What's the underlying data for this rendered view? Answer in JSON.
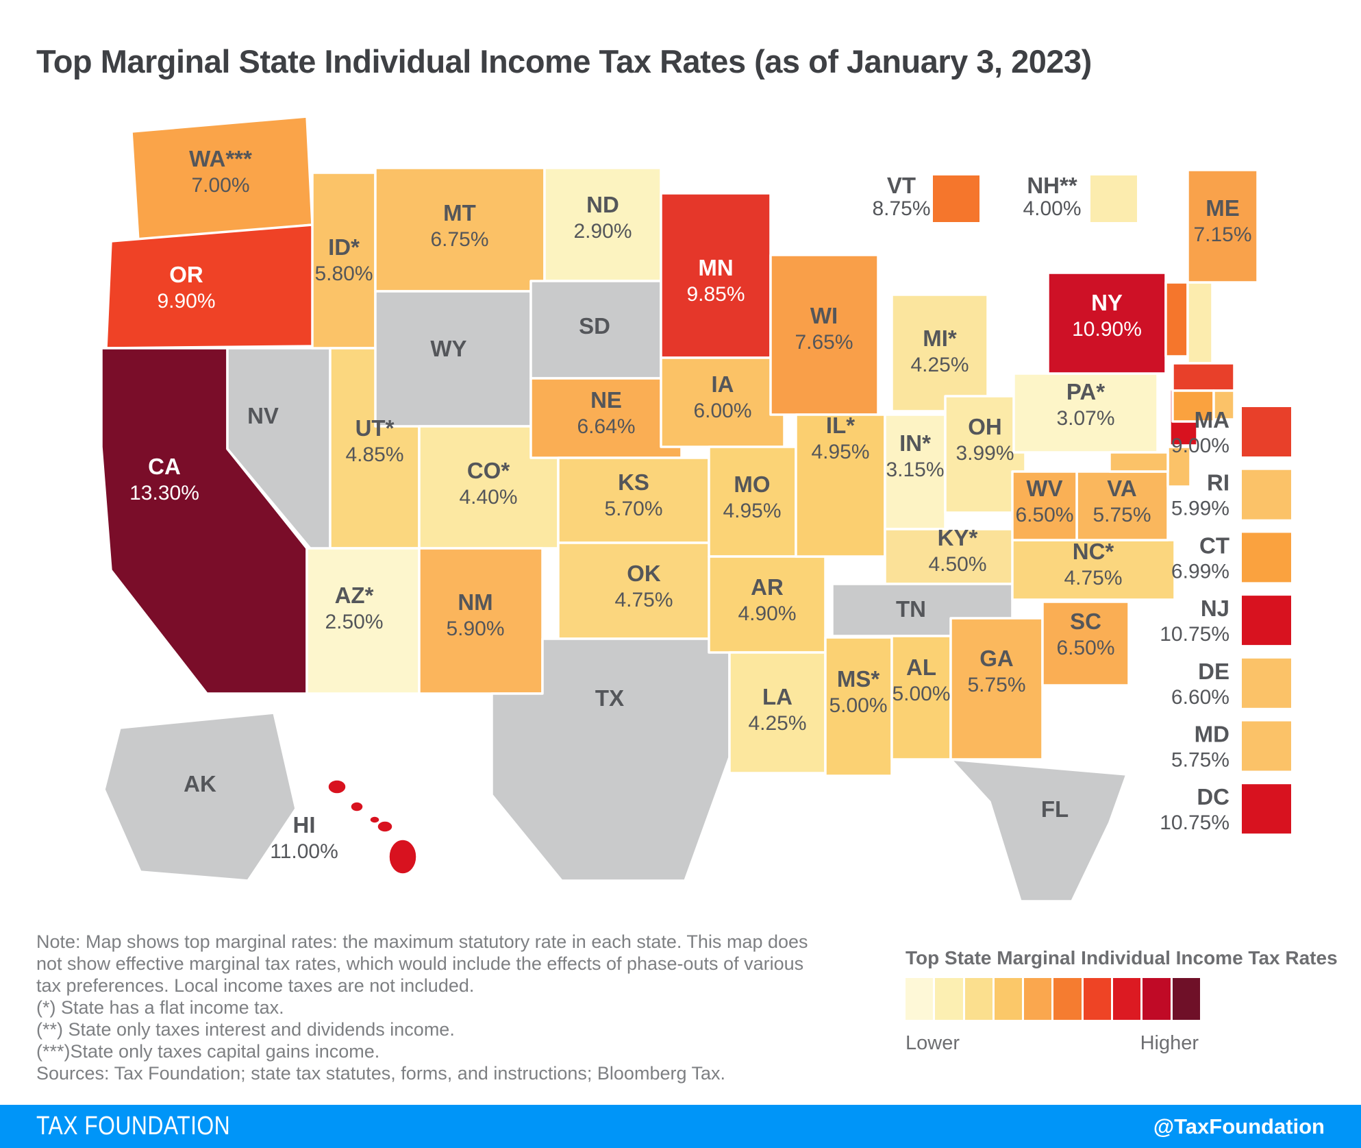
{
  "title": "Top Marginal State Individual Income Tax Rates (as of January 3, 2023)",
  "map": {
    "states": [
      {
        "abbr": "WA",
        "label": "WA***",
        "rate": "7.00%",
        "color": "#FAA449"
      },
      {
        "abbr": "OR",
        "label": "OR",
        "rate": "9.90%",
        "color": "#EF4226",
        "text": "white"
      },
      {
        "abbr": "CA",
        "label": "CA",
        "rate": "13.30%",
        "color": "#7A0D29",
        "text": "white"
      },
      {
        "abbr": "NV",
        "label": "NV",
        "color": "#C9CACB"
      },
      {
        "abbr": "ID",
        "label": "ID*",
        "rate": "5.80%",
        "color": "#FBC368"
      },
      {
        "abbr": "UT",
        "label": "UT*",
        "rate": "4.85%",
        "color": "#FBD77F"
      },
      {
        "abbr": "AZ",
        "label": "AZ*",
        "rate": "2.50%",
        "color": "#FDF6CD"
      },
      {
        "abbr": "MT",
        "label": "MT",
        "rate": "6.75%",
        "color": "#FBC166"
      },
      {
        "abbr": "WY",
        "label": "WY",
        "color": "#C9CACB"
      },
      {
        "abbr": "CO",
        "label": "CO*",
        "rate": "4.40%",
        "color": "#FCE8A2"
      },
      {
        "abbr": "NM",
        "label": "NM",
        "rate": "5.90%",
        "color": "#FBB55C"
      },
      {
        "abbr": "ND",
        "label": "ND",
        "rate": "2.90%",
        "color": "#FCF3C0"
      },
      {
        "abbr": "SD",
        "label": "SD",
        "color": "#C9CACB"
      },
      {
        "abbr": "NE",
        "label": "NE",
        "rate": "6.64%",
        "color": "#FAAE54"
      },
      {
        "abbr": "KS",
        "label": "KS",
        "rate": "5.70%",
        "color": "#FBD47A"
      },
      {
        "abbr": "OK",
        "label": "OK",
        "rate": "4.75%",
        "color": "#FBD67E"
      },
      {
        "abbr": "TX",
        "label": "TX",
        "color": "#C9CACB"
      },
      {
        "abbr": "MN",
        "label": "MN",
        "rate": "9.85%",
        "color": "#E5372A",
        "text": "white"
      },
      {
        "abbr": "IA",
        "label": "IA",
        "rate": "6.00%",
        "color": "#FBC266"
      },
      {
        "abbr": "MO",
        "label": "MO",
        "rate": "4.95%",
        "color": "#FBD376"
      },
      {
        "abbr": "AR",
        "label": "AR",
        "rate": "4.90%",
        "color": "#FBD376"
      },
      {
        "abbr": "LA",
        "label": "LA",
        "rate": "4.25%",
        "color": "#FCE79E"
      },
      {
        "abbr": "WI",
        "label": "WI",
        "rate": "7.65%",
        "color": "#F99F49"
      },
      {
        "abbr": "IL",
        "label": "IL*",
        "rate": "4.95%",
        "color": "#FBCF70"
      },
      {
        "abbr": "MS",
        "label": "MS*",
        "rate": "5.00%",
        "color": "#FBD173"
      },
      {
        "abbr": "MI",
        "label": "MI*",
        "rate": "4.25%",
        "color": "#FBE59E"
      },
      {
        "abbr": "IN",
        "label": "IN*",
        "rate": "3.15%",
        "color": "#FDF3C4"
      },
      {
        "abbr": "OH",
        "label": "OH",
        "rate": "3.99%",
        "color": "#FCEAA8"
      },
      {
        "abbr": "KY",
        "label": "KY*",
        "rate": "4.50%",
        "color": "#FBE198"
      },
      {
        "abbr": "TN",
        "label": "TN",
        "color": "#C9CACB"
      },
      {
        "abbr": "AL",
        "label": "AL",
        "rate": "5.00%",
        "color": "#FBD173"
      },
      {
        "abbr": "GA",
        "label": "GA",
        "rate": "5.75%",
        "color": "#FBB85D"
      },
      {
        "abbr": "SC",
        "label": "SC",
        "rate": "6.50%",
        "color": "#FAAE54"
      },
      {
        "abbr": "NC",
        "label": "NC*",
        "rate": "4.75%",
        "color": "#FBD67E"
      },
      {
        "abbr": "VA",
        "label": "VA",
        "rate": "5.75%",
        "color": "#FAB75D"
      },
      {
        "abbr": "WV",
        "label": "WV",
        "rate": "6.50%",
        "color": "#FAB055"
      },
      {
        "abbr": "PA",
        "label": "PA*",
        "rate": "3.07%",
        "color": "#FDF5C8"
      },
      {
        "abbr": "NJ",
        "color": "#D8121F"
      },
      {
        "abbr": "DE",
        "color": "#FBC268"
      },
      {
        "abbr": "MD",
        "color": "#FBC268"
      },
      {
        "abbr": "NY",
        "label": "NY",
        "rate": "10.90%",
        "color": "#CE1126",
        "text": "white"
      },
      {
        "abbr": "VT",
        "color": "#F5762C"
      },
      {
        "abbr": "NH",
        "color": "#FCECAE"
      },
      {
        "abbr": "MA",
        "color": "#E8402A"
      },
      {
        "abbr": "CT",
        "color": "#FAA23F"
      },
      {
        "abbr": "RI",
        "color": "#FBC268"
      },
      {
        "abbr": "ME",
        "label": "ME",
        "rate": "7.15%",
        "color": "#F9A24B"
      },
      {
        "abbr": "FL",
        "label": "FL",
        "color": "#C9CACB"
      },
      {
        "abbr": "AK",
        "label": "AK",
        "color": "#C9CACB"
      },
      {
        "abbr": "HI",
        "label": "HI",
        "rate": "11.00%",
        "color": "#D8121F",
        "text": "dark-outside"
      }
    ]
  },
  "top_legend": [
    {
      "abbr": "VT",
      "rate": "8.75%",
      "color": "#F5762C"
    },
    {
      "abbr": "NH**",
      "rate": "4.00%",
      "color": "#FCECAE"
    }
  ],
  "side_legend": [
    {
      "abbr": "MA",
      "rate": "9.00%",
      "color": "#E8402A"
    },
    {
      "abbr": "RI",
      "rate": "5.99%",
      "color": "#FBC268"
    },
    {
      "abbr": "CT",
      "rate": "6.99%",
      "color": "#FAA23F"
    },
    {
      "abbr": "NJ",
      "rate": "10.75%",
      "color": "#D8121F"
    },
    {
      "abbr": "DE",
      "rate": "6.60%",
      "color": "#FBC268"
    },
    {
      "abbr": "MD",
      "rate": "5.75%",
      "color": "#FBC268"
    },
    {
      "abbr": "DC",
      "rate": "10.75%",
      "color": "#D8121F"
    }
  ],
  "notes": {
    "lines": [
      "Note: Map shows top marginal rates: the maximum statutory rate in each state. This map does",
      "not show effective marginal tax rates, which would include the effects of phase-outs of various",
      "tax preferences. Local income taxes are not included.",
      "(*) State has a flat income tax.",
      "(**) State only taxes interest and dividends income.",
      "(***)State only taxes capital gains income.",
      "Sources: Tax Foundation; state tax statutes, forms, and instructions; Bloomberg Tax."
    ]
  },
  "gradient_legend": {
    "title": "Top State Marginal Individual Income Tax Rates",
    "lower": "Lower",
    "higher": "Higher",
    "colors": [
      "#FEF8D7",
      "#FCEFB2",
      "#FBDF8E",
      "#FBC869",
      "#FAA74E",
      "#F57C30",
      "#EE4425",
      "#DC1A22",
      "#C00A26",
      "#6F1028"
    ]
  },
  "footer": {
    "brand": "TAX FOUNDATION",
    "handle": "@TaxFoundation",
    "bar_color": "#0095F8"
  },
  "chart_data": {
    "type": "choropleth",
    "title": "Top Marginal State Individual Income Tax Rates (as of January 3, 2023)",
    "unit": "percent",
    "values": {
      "CA": 13.3,
      "HI": 11.0,
      "NY": 10.9,
      "NJ": 10.75,
      "DC": 10.75,
      "OR": 9.9,
      "MN": 9.85,
      "MA": 9.0,
      "VT": 8.75,
      "WI": 7.65,
      "ME": 7.15,
      "WA": 7.0,
      "CT": 6.99,
      "MT": 6.75,
      "NE": 6.64,
      "DE": 6.6,
      "WV": 6.5,
      "SC": 6.5,
      "IA": 6.0,
      "RI": 5.99,
      "NM": 5.9,
      "ID": 5.8,
      "GA": 5.75,
      "VA": 5.75,
      "MD": 5.75,
      "KS": 5.7,
      "MO": 4.95,
      "IL": 4.95,
      "AR": 4.9,
      "UT": 4.85,
      "OK": 4.75,
      "NC": 4.75,
      "KY": 4.5,
      "LA": 4.25,
      "MI": 4.25,
      "CO": 4.4,
      "MS": 5.0,
      "AL": 5.0,
      "NH": 4.0,
      "OH": 3.99,
      "IN": 3.15,
      "PA": 3.07,
      "ND": 2.9,
      "AZ": 2.5
    },
    "no_income_tax_states": [
      "AK",
      "FL",
      "NV",
      "SD",
      "TN",
      "TX",
      "WY"
    ],
    "legend": {
      "low_label": "Lower",
      "high_label": "Higher"
    }
  }
}
